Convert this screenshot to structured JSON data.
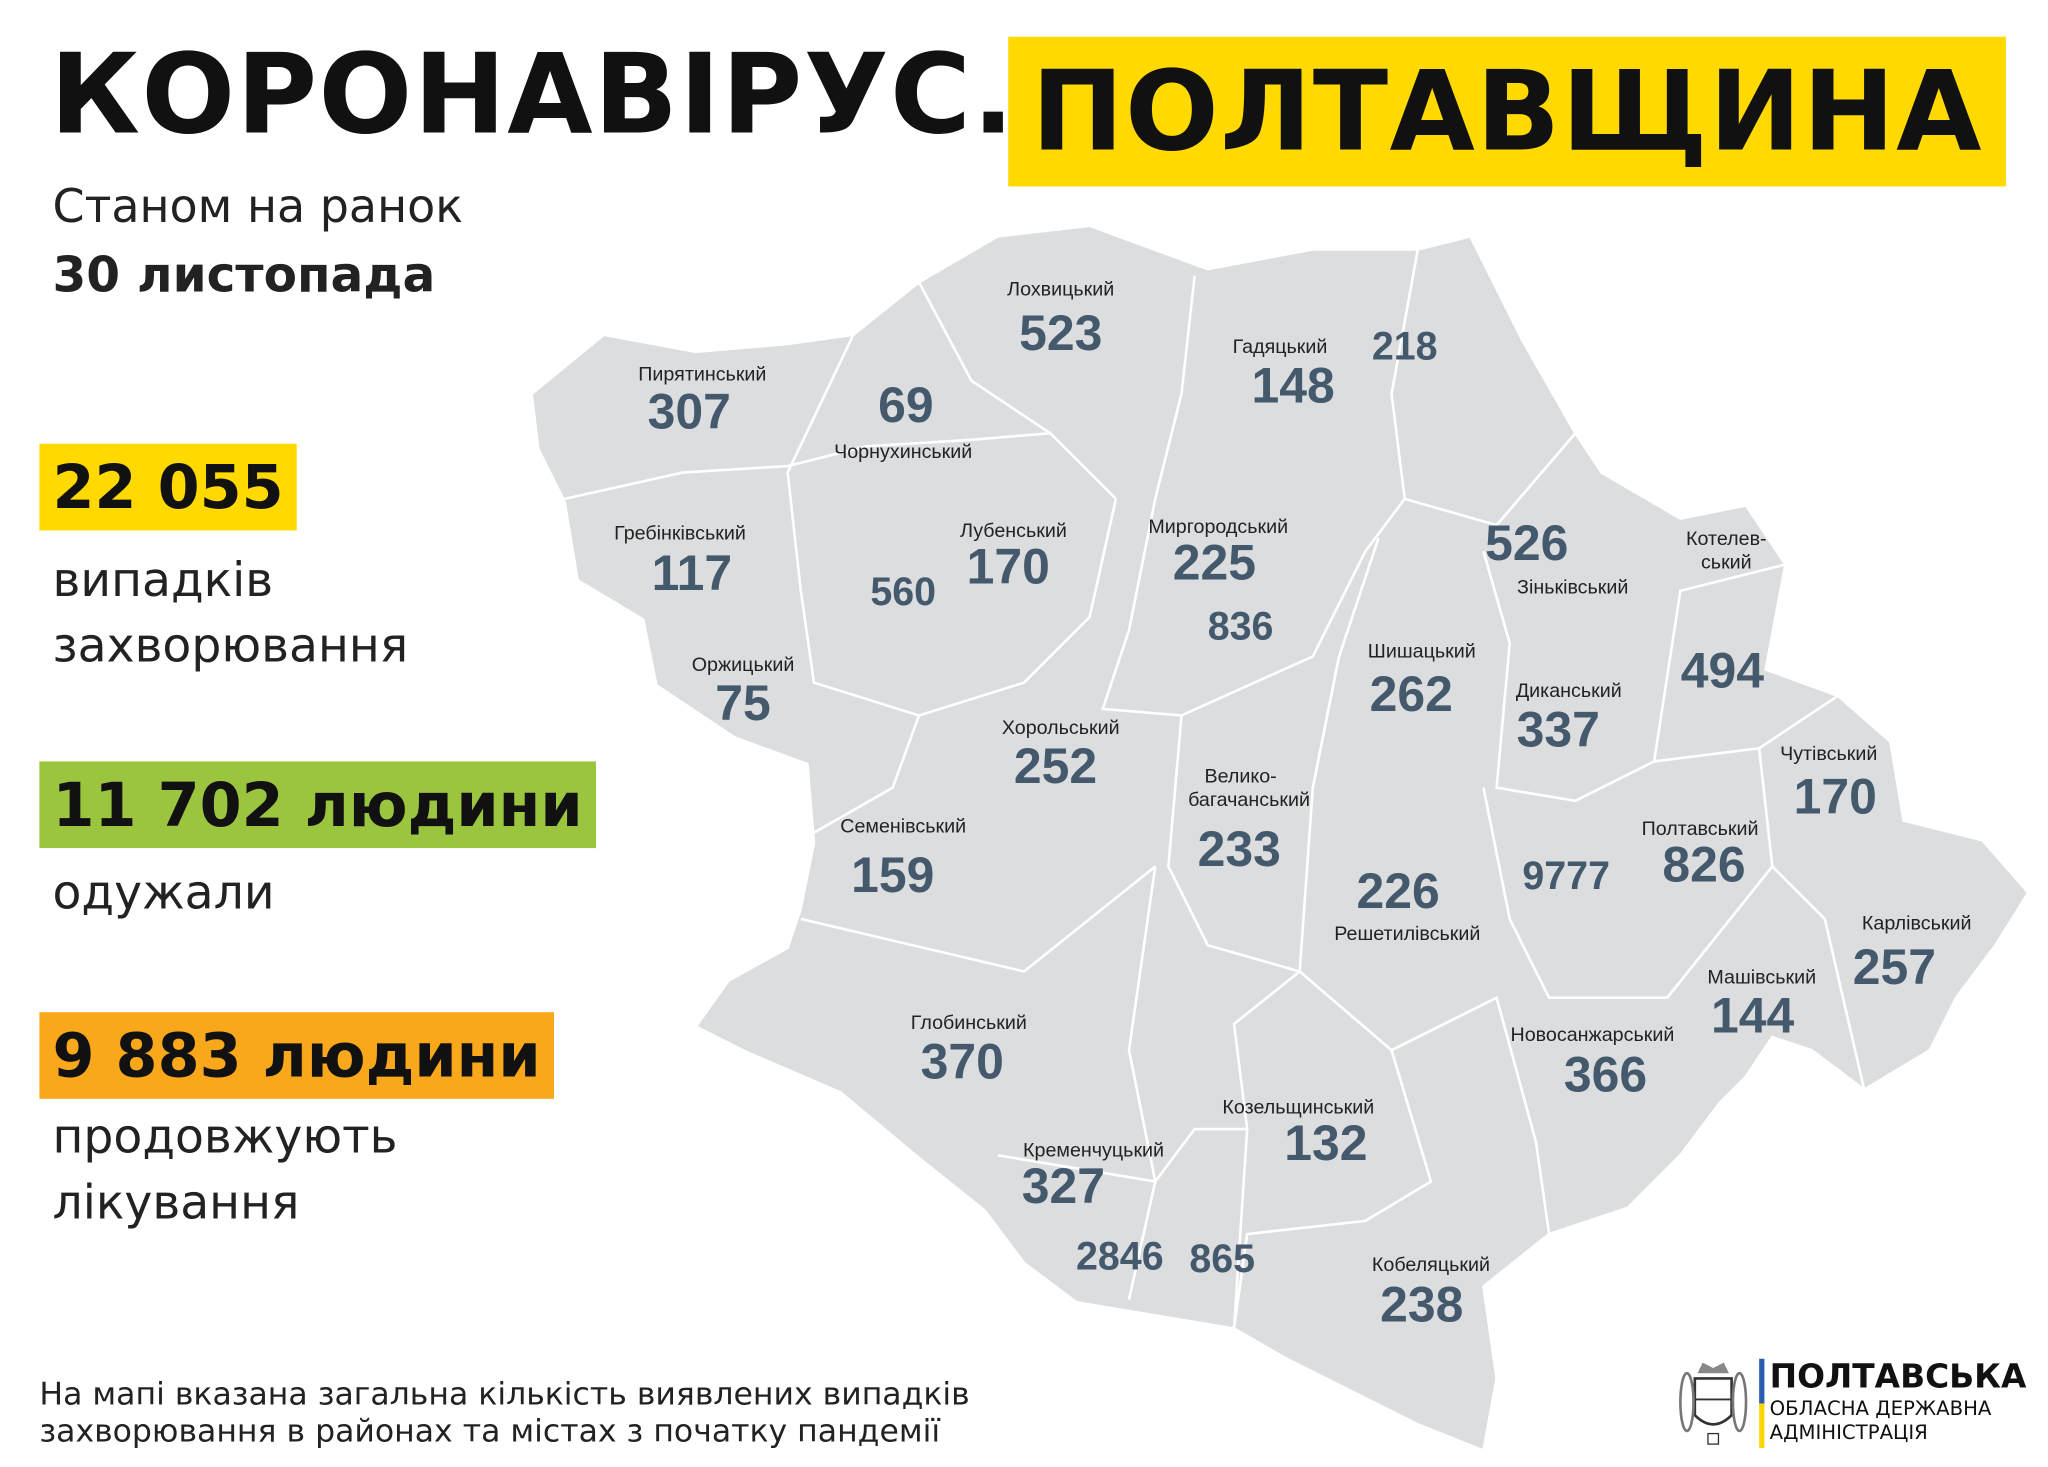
{
  "header": {
    "title": "КОРОНАВІРУС.",
    "region_highlight": "ПОЛТАВЩИНА",
    "date_line1": "Станом на ранок",
    "date_line2": "30 листопада"
  },
  "stats": [
    {
      "value": "22 055",
      "label_line1": "випадків",
      "label_line2": "захворювання",
      "color": "#ffd900"
    },
    {
      "value": "11 702 людини",
      "label_line1": "одужали",
      "label_line2": "",
      "color": "#9bc43f"
    },
    {
      "value": "9 883 людини",
      "label_line1": "продовжують",
      "label_line2": "лікування",
      "color": "#f9a71b"
    }
  ],
  "map": {
    "fill_color": "#dcdddf",
    "number_color": "#45596c",
    "districts": [
      {
        "name": "Лохвицький",
        "cases": "523"
      },
      {
        "name": "Гадяцький",
        "cases": "148"
      },
      {
        "name": "Пирятинський",
        "cases": "307"
      },
      {
        "name": "Чорнухинський",
        "cases": "69"
      },
      {
        "name": "Гребінківський",
        "cases": "117"
      },
      {
        "name": "Лубенський",
        "cases": "170"
      },
      {
        "name": "Миргородський",
        "cases": "225"
      },
      {
        "name": "Зіньківський",
        "cases": "526"
      },
      {
        "name": "Котелев-ський",
        "cases": "494"
      },
      {
        "name": "Оржицький",
        "cases": "75"
      },
      {
        "name": "Шишацький",
        "cases": "262"
      },
      {
        "name": "Диканський",
        "cases": "337"
      },
      {
        "name": "Хорольський",
        "cases": "252"
      },
      {
        "name": "Чутівський",
        "cases": "170"
      },
      {
        "name": "Семенівський",
        "cases": "159"
      },
      {
        "name": "Велико-багачанський",
        "cases": "233"
      },
      {
        "name": "Полтавський",
        "cases": "826"
      },
      {
        "name": "Решетилівський",
        "cases": "226"
      },
      {
        "name": "Карлівський",
        "cases": "257"
      },
      {
        "name": "Машівський",
        "cases": "144"
      },
      {
        "name": "Глобинський",
        "cases": "370"
      },
      {
        "name": "Новосанжарський",
        "cases": "366"
      },
      {
        "name": "Козельщинський",
        "cases": "132"
      },
      {
        "name": "Кременчуцький",
        "cases": "327"
      },
      {
        "name": "Кобеляцький",
        "cases": "238"
      }
    ],
    "cities": [
      "218",
      "560",
      "836",
      "9777",
      "2846",
      "865"
    ]
  },
  "footnote": {
    "line1": "На мапі вказана загальна кількість виявлених випадків",
    "line2": "захворювання в районах та містах з початку пандемії"
  },
  "logo": {
    "emblem_text": "ПОЛТАВЩИНА",
    "line1": "ПОЛТАВСЬКА",
    "line2": "ОБЛАСНА ДЕРЖАВНА",
    "line3": "АДМІНІСТРАЦІЯ"
  }
}
